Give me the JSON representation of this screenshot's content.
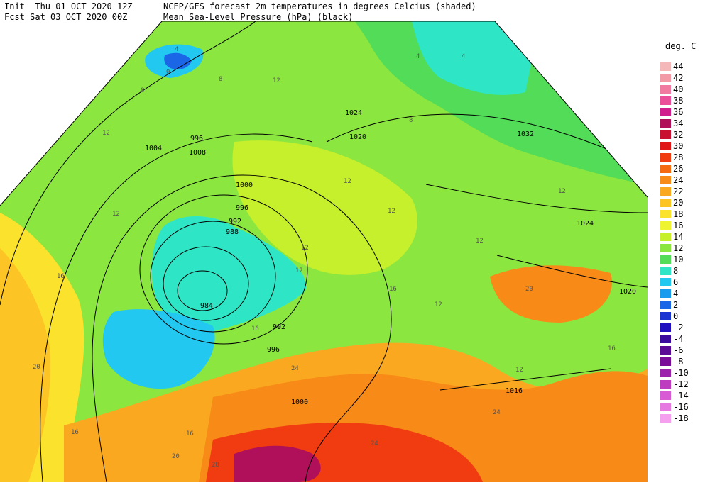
{
  "header": {
    "line1_left": "Init  Thu 01 OCT 2020 12Z",
    "line2_left": "Fcst Sat 03 OCT 2020 00Z",
    "line1_right": "NCEP/GFS forecast 2m temperatures in degrees Celcius (shaded)",
    "line2_right": "Mean Sea-Level Pressure (hPa) (black)"
  },
  "legend": {
    "title": "deg. C",
    "items": [
      {
        "label": "44",
        "color": "#f4b8b8"
      },
      {
        "label": "42",
        "color": "#f29aa6"
      },
      {
        "label": "40",
        "color": "#f07aa0"
      },
      {
        "label": "38",
        "color": "#ec4f9a"
      },
      {
        "label": "36",
        "color": "#d01e8c"
      },
      {
        "label": "34",
        "color": "#b0105a"
      },
      {
        "label": "32",
        "color": "#c81030"
      },
      {
        "label": "30",
        "color": "#e01818"
      },
      {
        "label": "28",
        "color": "#f03c10"
      },
      {
        "label": "26",
        "color": "#f56a10"
      },
      {
        "label": "24",
        "color": "#f88a18"
      },
      {
        "label": "22",
        "color": "#faa820"
      },
      {
        "label": "20",
        "color": "#fcc424"
      },
      {
        "label": "18",
        "color": "#fbe22c"
      },
      {
        "label": "16",
        "color": "#eef530"
      },
      {
        "label": "14",
        "color": "#c6ef2c"
      },
      {
        "label": "12",
        "color": "#8ce640"
      },
      {
        "label": "10",
        "color": "#52dc58"
      },
      {
        "label": "8",
        "color": "#2ee6c6"
      },
      {
        "label": "6",
        "color": "#22c8f0"
      },
      {
        "label": "4",
        "color": "#1a9cee"
      },
      {
        "label": "2",
        "color": "#1a66e6"
      },
      {
        "label": "0",
        "color": "#1a34d2"
      },
      {
        "label": "-2",
        "color": "#2010c0"
      },
      {
        "label": "-4",
        "color": "#3a0a9e"
      },
      {
        "label": "-6",
        "color": "#5a0a94"
      },
      {
        "label": "-8",
        "color": "#7a0c9a"
      },
      {
        "label": "-10",
        "color": "#9c24ac"
      },
      {
        "label": "-12",
        "color": "#be3cc0"
      },
      {
        "label": "-14",
        "color": "#d85ad4"
      },
      {
        "label": "-16",
        "color": "#e67ae0"
      },
      {
        "label": "-18",
        "color": "#f4a0ee"
      }
    ]
  },
  "map": {
    "isobar_labels": [
      "984",
      "988",
      "992",
      "996",
      "996",
      "996",
      "992",
      "1000",
      "1000",
      "1004",
      "1008",
      "1020",
      "1024",
      "1024",
      "1032",
      "1020",
      "1016"
    ],
    "temp_labels": [
      "4",
      "0",
      "4",
      "4",
      "8",
      "8",
      "8",
      "12",
      "12",
      "12",
      "12",
      "12",
      "12",
      "12",
      "12",
      "12",
      "12",
      "12",
      "16",
      "16",
      "16",
      "16",
      "16",
      "16",
      "20",
      "20",
      "20",
      "24",
      "24",
      "24",
      "28"
    ]
  }
}
